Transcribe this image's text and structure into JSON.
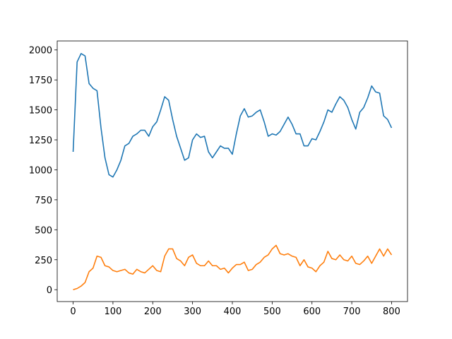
{
  "chart_data": {
    "type": "line",
    "x": [
      0,
      10,
      20,
      30,
      40,
      50,
      60,
      70,
      80,
      90,
      100,
      110,
      120,
      130,
      140,
      150,
      160,
      170,
      180,
      190,
      200,
      210,
      220,
      230,
      240,
      250,
      260,
      270,
      280,
      290,
      300,
      310,
      320,
      330,
      340,
      350,
      360,
      370,
      380,
      390,
      400,
      410,
      420,
      430,
      440,
      450,
      460,
      470,
      480,
      490,
      500,
      510,
      520,
      530,
      540,
      550,
      560,
      570,
      580,
      590,
      600,
      610,
      620,
      630,
      640,
      650,
      660,
      670,
      680,
      690,
      700,
      710,
      720,
      730,
      740,
      750,
      760,
      770,
      780,
      790,
      800
    ],
    "series": [
      {
        "color": "#1f77b4",
        "values": [
          1150,
          1900,
          1970,
          1950,
          1720,
          1680,
          1660,
          1350,
          1100,
          960,
          940,
          1000,
          1080,
          1200,
          1220,
          1280,
          1300,
          1330,
          1330,
          1280,
          1360,
          1400,
          1500,
          1610,
          1580,
          1420,
          1280,
          1180,
          1080,
          1100,
          1250,
          1300,
          1270,
          1280,
          1150,
          1100,
          1150,
          1200,
          1180,
          1180,
          1130,
          1300,
          1450,
          1510,
          1440,
          1450,
          1480,
          1500,
          1400,
          1280,
          1300,
          1290,
          1320,
          1380,
          1440,
          1380,
          1300,
          1300,
          1200,
          1200,
          1260,
          1250,
          1320,
          1400,
          1500,
          1480,
          1550,
          1610,
          1580,
          1520,
          1420,
          1340,
          1480,
          1520,
          1600,
          1700,
          1650,
          1640,
          1450,
          1420,
          1350
        ]
      },
      {
        "color": "#ff7f0e",
        "values": [
          0,
          10,
          30,
          60,
          150,
          180,
          280,
          270,
          200,
          190,
          160,
          150,
          160,
          170,
          140,
          130,
          170,
          150,
          140,
          170,
          200,
          160,
          150,
          280,
          340,
          340,
          260,
          240,
          200,
          270,
          290,
          220,
          200,
          200,
          240,
          200,
          200,
          170,
          180,
          140,
          180,
          210,
          210,
          230,
          160,
          170,
          210,
          230,
          270,
          290,
          340,
          370,
          300,
          290,
          300,
          280,
          270,
          200,
          250,
          190,
          180,
          150,
          200,
          230,
          320,
          260,
          250,
          290,
          250,
          240,
          280,
          220,
          210,
          240,
          280,
          220,
          280,
          340,
          280,
          340,
          290
        ]
      }
    ],
    "xlim": [
      -40,
      840
    ],
    "xticks": [
      0,
      100,
      200,
      300,
      400,
      500,
      600,
      700,
      800
    ],
    "ylim": [
      -99,
      2075
    ],
    "yticks": [
      0,
      250,
      500,
      750,
      1000,
      1250,
      1500,
      1750,
      2000
    ],
    "grid": false
  }
}
